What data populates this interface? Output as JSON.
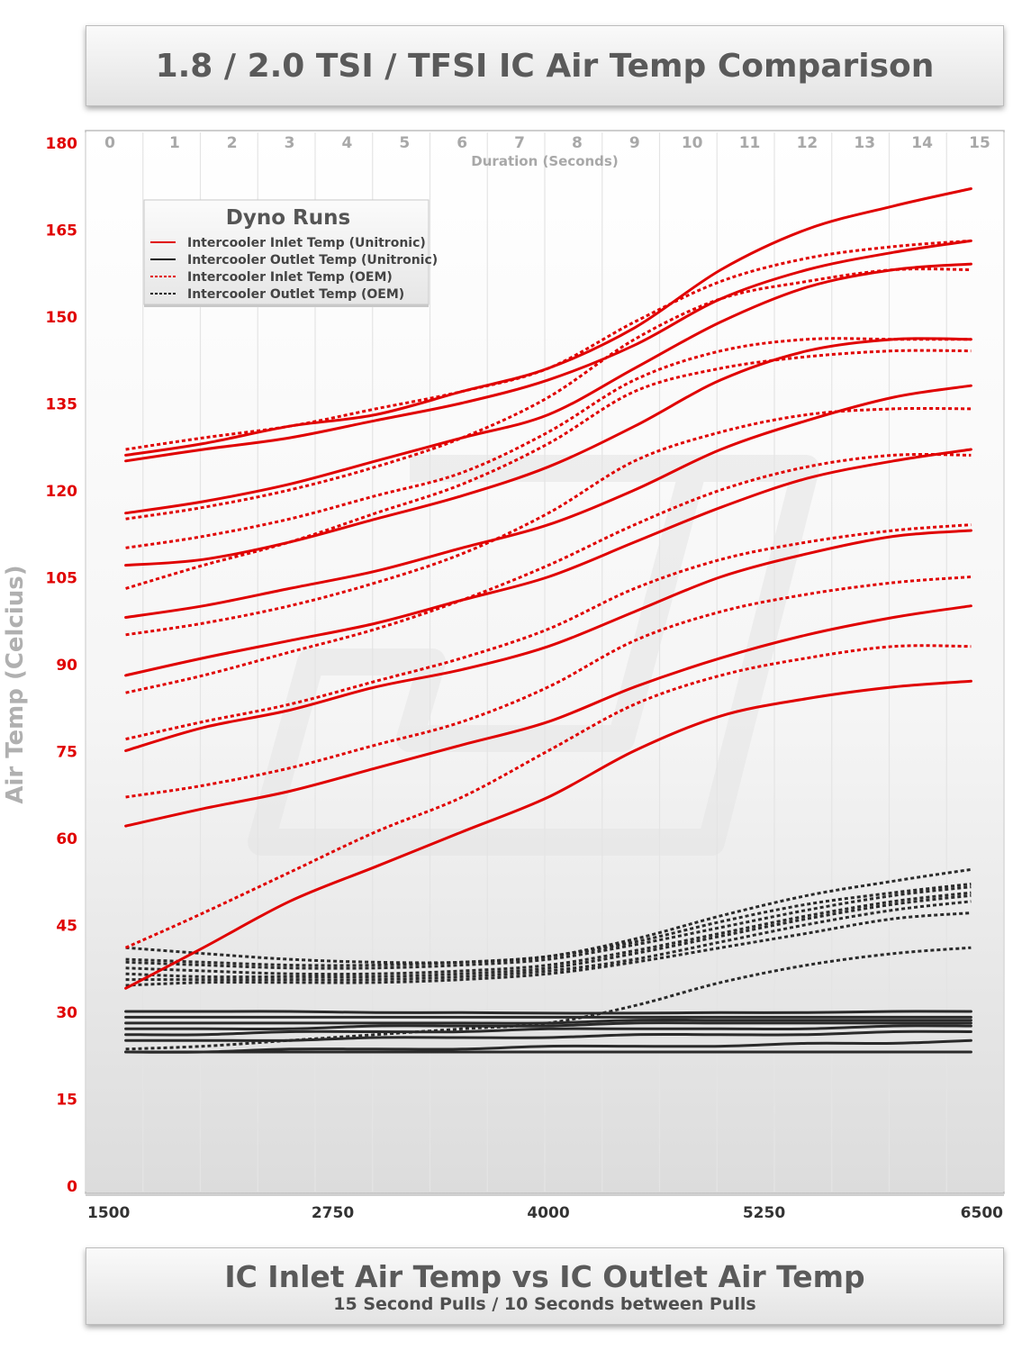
{
  "title": "1.8 / 2.0 TSI / TFSI IC Air Temp Comparison",
  "bottom_title": "IC Inlet Air Temp vs IC Outlet Air Temp",
  "bottom_subtitle": "15 Second Pulls / 10 Seconds between Pulls",
  "colors": {
    "inlet": "#e00000",
    "outlet": "#2a2a2a",
    "ytick": "#e00000",
    "toptick": "#a8a8a8",
    "axis_title": "#b0b0b0"
  },
  "chart_data": {
    "type": "line",
    "title": "1.8 / 2.0 TSI / TFSI IC Air Temp Comparison",
    "ylabel": "Air Temp (Celcius)",
    "top_xlabel": "Duration (Seconds)",
    "ylim": [
      0,
      180
    ],
    "yticks": [
      0,
      15,
      30,
      45,
      60,
      75,
      90,
      105,
      120,
      135,
      150,
      165,
      180
    ],
    "xlim": [
      1500,
      6500
    ],
    "xticks": [
      1500,
      2750,
      4000,
      5250,
      6500
    ],
    "top_ticks": [
      0,
      1,
      2,
      3,
      4,
      5,
      6,
      7,
      8,
      9,
      10,
      11,
      12,
      13,
      14,
      15
    ],
    "grid": true,
    "legend": {
      "title": "Dyno Runs",
      "position": "top-left",
      "entries": [
        {
          "label": "Intercooler Inlet Temp (Unitronic)",
          "color": "#e00000",
          "style": "solid"
        },
        {
          "label": "Intercooler Outlet Temp (Unitronic)",
          "color": "#111111",
          "style": "solid"
        },
        {
          "label": "Intercooler Inlet Temp (OEM)",
          "color": "#e00000",
          "style": "dotted"
        },
        {
          "label": "Intercooler Outlet Temp (OEM)",
          "color": "#111111",
          "style": "dotted"
        }
      ]
    },
    "x": [
      1550,
      2000,
      2500,
      3000,
      3500,
      4000,
      4500,
      5000,
      5500,
      6000,
      6450
    ],
    "series": [
      {
        "group": "inlet_unitronic",
        "values": [
          34,
          41,
          49,
          55,
          61,
          67,
          75,
          81,
          84,
          86,
          87
        ]
      },
      {
        "group": "inlet_unitronic",
        "values": [
          62,
          65,
          68,
          72,
          76,
          80,
          86,
          91,
          95,
          98,
          100
        ]
      },
      {
        "group": "inlet_unitronic",
        "values": [
          75,
          79,
          82,
          86,
          89,
          93,
          99,
          105,
          109,
          112,
          113
        ]
      },
      {
        "group": "inlet_unitronic",
        "values": [
          88,
          91,
          94,
          97,
          101,
          105,
          111,
          117,
          122,
          125,
          127
        ]
      },
      {
        "group": "inlet_unitronic",
        "values": [
          98,
          100,
          103,
          106,
          110,
          114,
          120,
          127,
          132,
          136,
          138
        ]
      },
      {
        "group": "inlet_unitronic",
        "values": [
          107,
          108,
          111,
          115,
          119,
          124,
          131,
          139,
          144,
          146,
          146
        ]
      },
      {
        "group": "inlet_unitronic",
        "values": [
          116,
          118,
          121,
          125,
          129,
          133,
          141,
          149,
          155,
          158,
          159
        ]
      },
      {
        "group": "inlet_unitronic",
        "values": [
          125,
          127,
          129,
          132,
          135,
          139,
          145,
          153,
          158,
          161,
          163
        ]
      },
      {
        "group": "inlet_unitronic",
        "values": [
          126,
          128,
          131,
          133,
          137,
          141,
          148,
          158,
          165,
          169,
          172
        ]
      },
      {
        "group": "inlet_oem",
        "values": [
          41,
          47,
          54,
          61,
          67,
          75,
          83,
          88,
          91,
          93,
          93
        ]
      },
      {
        "group": "inlet_oem",
        "values": [
          67,
          69,
          72,
          76,
          80,
          86,
          94,
          99,
          102,
          104,
          105
        ]
      },
      {
        "group": "inlet_oem",
        "values": [
          77,
          80,
          83,
          87,
          91,
          96,
          103,
          108,
          111,
          113,
          114
        ]
      },
      {
        "group": "inlet_oem",
        "values": [
          85,
          88,
          92,
          96,
          101,
          107,
          114,
          120,
          124,
          126,
          126
        ]
      },
      {
        "group": "inlet_oem",
        "values": [
          95,
          97,
          100,
          104,
          109,
          116,
          125,
          130,
          133,
          134,
          134
        ]
      },
      {
        "group": "inlet_oem",
        "values": [
          103,
          107,
          111,
          116,
          121,
          128,
          137,
          141,
          143,
          144,
          144
        ]
      },
      {
        "group": "inlet_oem",
        "values": [
          110,
          112,
          115,
          119,
          123,
          130,
          139,
          144,
          146,
          146,
          146
        ]
      },
      {
        "group": "inlet_oem",
        "values": [
          115,
          117,
          120,
          124,
          129,
          136,
          146,
          153,
          156,
          158,
          158
        ]
      },
      {
        "group": "inlet_oem",
        "values": [
          127,
          129,
          131,
          134,
          137,
          141,
          149,
          156,
          160,
          162,
          163
        ]
      },
      {
        "group": "outlet_unitronic",
        "values": [
          23,
          23,
          23,
          23,
          23,
          23,
          23,
          23,
          23,
          23,
          23
        ]
      },
      {
        "group": "outlet_unitronic",
        "values": [
          23,
          23,
          23.5,
          23.5,
          23.5,
          24,
          24,
          24,
          24.5,
          24.5,
          25
        ]
      },
      {
        "group": "outlet_unitronic",
        "values": [
          25,
          25,
          25,
          25.5,
          25.5,
          25.5,
          26,
          26,
          26,
          26.5,
          26.5
        ]
      },
      {
        "group": "outlet_unitronic",
        "values": [
          26,
          26,
          26.5,
          26.5,
          26.5,
          27,
          27,
          27,
          27,
          27.5,
          27.5
        ]
      },
      {
        "group": "outlet_unitronic",
        "values": [
          27,
          27,
          27,
          27.5,
          27.5,
          27.5,
          28,
          28,
          28,
          28,
          28
        ]
      },
      {
        "group": "outlet_unitronic",
        "values": [
          28,
          28,
          28,
          28,
          28,
          28,
          28.5,
          28.5,
          28.5,
          28.5,
          28.5
        ]
      },
      {
        "group": "outlet_unitronic",
        "values": [
          29,
          29,
          29,
          29,
          29,
          29,
          29,
          29,
          29,
          29,
          29
        ]
      },
      {
        "group": "outlet_unitronic",
        "values": [
          30,
          30,
          30,
          29.8,
          29.8,
          29.7,
          29.7,
          29.8,
          29.8,
          30,
          30
        ]
      },
      {
        "group": "outlet_oem",
        "values": [
          23.5,
          24,
          25,
          26,
          27,
          28,
          31,
          35,
          38,
          40,
          41
        ]
      },
      {
        "group": "outlet_oem",
        "values": [
          34.5,
          35,
          35,
          35,
          35.5,
          36.5,
          38.5,
          41,
          43.5,
          46,
          47
        ]
      },
      {
        "group": "outlet_oem",
        "values": [
          35.5,
          35.5,
          35.5,
          35.5,
          36,
          37,
          39,
          42,
          45,
          47.5,
          49
        ]
      },
      {
        "group": "outlet_oem",
        "values": [
          36.5,
          36,
          36,
          36,
          36.5,
          37.5,
          40,
          43,
          46,
          48.5,
          50
        ]
      },
      {
        "group": "outlet_oem",
        "values": [
          37.5,
          37,
          36.5,
          36.5,
          37,
          38,
          40.5,
          43.5,
          46.5,
          49,
          50.5
        ]
      },
      {
        "group": "outlet_oem",
        "values": [
          38.5,
          38,
          37.5,
          37.5,
          38,
          39,
          41.5,
          44.5,
          47.5,
          50,
          51.5
        ]
      },
      {
        "group": "outlet_oem",
        "values": [
          39,
          38.5,
          38,
          38,
          38.5,
          39.5,
          42,
          45.5,
          48.5,
          50.5,
          52
        ]
      },
      {
        "group": "outlet_oem",
        "values": [
          41,
          40,
          39,
          38.5,
          38.5,
          39.5,
          42.5,
          46.5,
          50,
          52.5,
          54.5
        ]
      }
    ]
  }
}
